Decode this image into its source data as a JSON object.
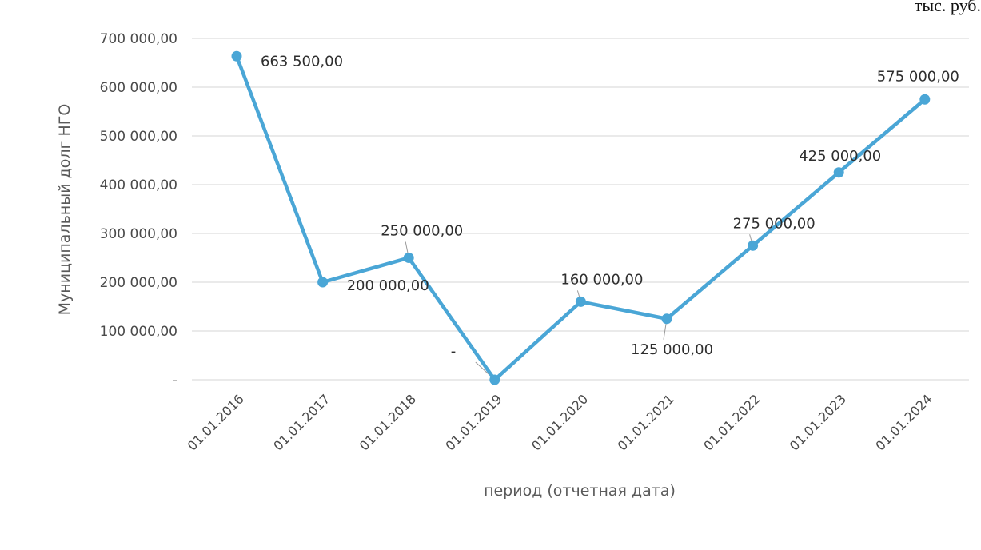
{
  "header": {
    "units_note": "тыс. руб."
  },
  "chart_data": {
    "type": "line",
    "title": "",
    "xlabel": "период (отчетная дата)",
    "ylabel": "Муниципальный долг НГО",
    "categories": [
      "01.01.2016",
      "01.01.2017",
      "01.01.2018",
      "01.01.2019",
      "01.01.2020",
      "01.01.2021",
      "01.01.2022",
      "01.01.2023",
      "01.01.2024"
    ],
    "series": [
      {
        "values": [
          663500,
          200000,
          250000,
          0,
          160000,
          125000,
          275000,
          425000,
          575000
        ],
        "data_labels": [
          "663 500,00",
          "200 000,00",
          "250 000,00",
          "-",
          "160 000,00",
          "125 000,00",
          "275 000,00",
          "425 000,00",
          "575 000,00"
        ]
      }
    ],
    "ylim": [
      0,
      700000
    ],
    "yticks": [
      0,
      100000,
      200000,
      300000,
      400000,
      500000,
      600000,
      700000
    ],
    "ytick_labels": [
      "-",
      "100 000,00",
      "200 000,00",
      "300 000,00",
      "400 000,00",
      "500 000,00",
      "600 000,00",
      "700 000,00"
    ],
    "grid": true,
    "legend": "none",
    "colors": {
      "line": "#4aa6d6",
      "grid": "#e3e3e3",
      "text": "#4a4a4a"
    }
  }
}
